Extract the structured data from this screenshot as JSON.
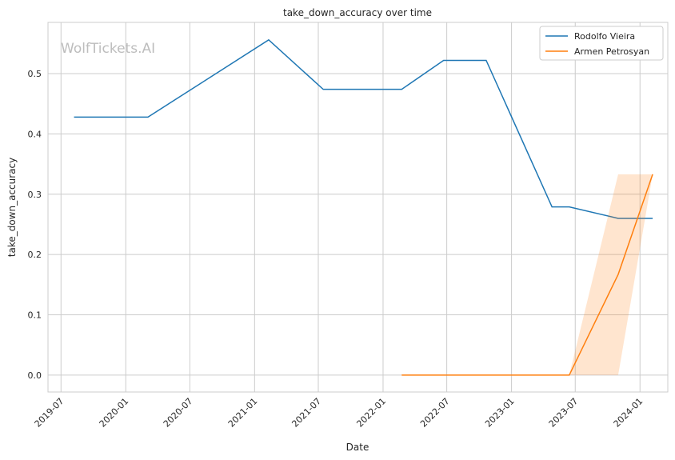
{
  "chart_data": {
    "type": "line",
    "title": "take_down_accuracy over time",
    "xlabel": "Date",
    "ylabel": "take_down_accuracy",
    "watermark": "WolfTickets.AI",
    "xlim": [
      "2019-05-25",
      "2024-03-20"
    ],
    "ylim": [
      -0.028,
      0.585
    ],
    "x_ticks": [
      "2019-07",
      "2020-01",
      "2020-07",
      "2021-01",
      "2021-07",
      "2022-01",
      "2022-07",
      "2023-01",
      "2023-07",
      "2024-01"
    ],
    "y_ticks": [
      "0.0",
      "0.1",
      "0.2",
      "0.3",
      "0.4",
      "0.5"
    ],
    "grid": true,
    "legend_position": "top-right",
    "series": [
      {
        "name": "Rodolfo Vieira",
        "color": "#1f77b4",
        "x": [
          "2019-08-07",
          "2020-03-04",
          "2021-02-10",
          "2021-07-15",
          "2022-02-23",
          "2022-06-22",
          "2022-10-21",
          "2023-04-26",
          "2023-06-14",
          "2023-10-31",
          "2024-02-06"
        ],
        "y": [
          0.428,
          0.428,
          0.556,
          0.474,
          0.474,
          0.522,
          0.522,
          0.279,
          0.279,
          0.26,
          0.26
        ]
      },
      {
        "name": "Armen Petrosyan",
        "color": "#ff7f0e",
        "x": [
          "2022-02-23",
          "2023-06-14",
          "2023-10-31",
          "2024-02-06"
        ],
        "y": [
          0.0,
          0.0,
          0.167,
          0.333
        ],
        "band_low": [
          0.0,
          0.0,
          0.0,
          0.333
        ],
        "band_high": [
          0.0,
          0.0,
          0.333,
          0.333
        ]
      }
    ]
  }
}
